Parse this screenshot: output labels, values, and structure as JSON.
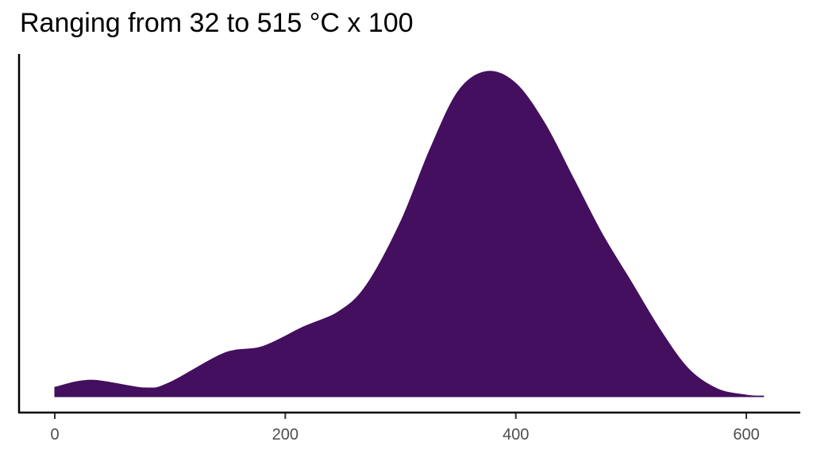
{
  "chart_data": {
    "type": "area",
    "subtype": "density",
    "title": "Ranging from 32 to 515 °C x 100",
    "xlabel": "",
    "ylabel": "",
    "xlim": [
      -30,
      645
    ],
    "x_ticks": [
      0,
      200,
      400,
      600
    ],
    "x_tick_labels": [
      "0",
      "200",
      "400",
      "600"
    ],
    "y_ticks_shown": false,
    "grid": false,
    "legend": "none",
    "fill_color": "#440F5E",
    "series": [
      {
        "x": [
          0,
          32,
          78,
          100,
          147,
          180,
          216,
          246,
          270,
          300,
          325,
          350,
          375,
          400,
          425,
          450,
          475,
          500,
          525,
          550,
          575,
          600,
          615
        ],
        "y": [
          0.029,
          0.051,
          0.027,
          0.044,
          0.134,
          0.154,
          0.215,
          0.261,
          0.341,
          0.537,
          0.756,
          0.939,
          1.0,
          0.963,
          0.841,
          0.671,
          0.5,
          0.354,
          0.207,
          0.085,
          0.024,
          0.005,
          0.002
        ]
      }
    ]
  }
}
